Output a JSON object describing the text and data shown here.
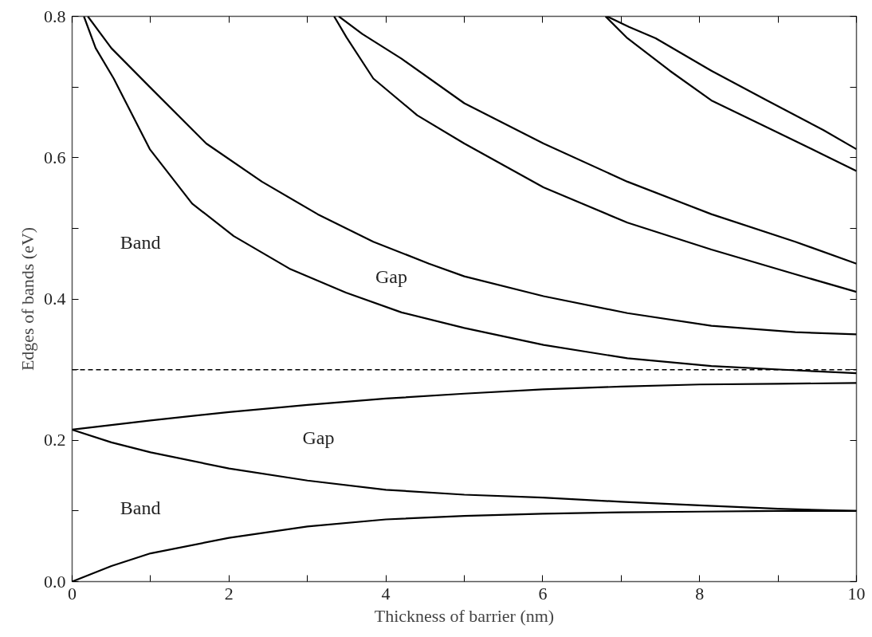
{
  "chart_data": {
    "type": "line",
    "xlabel": "Thickness of barrier (nm)",
    "ylabel": "Edges of bands (eV)",
    "xlim": [
      0,
      10
    ],
    "ylim": [
      0,
      0.8
    ],
    "xticks": [
      0,
      {
        "value": 1,
        "label": null
      },
      2,
      {
        "value": 3,
        "label": null
      },
      4,
      {
        "value": 5,
        "label": null
      },
      6,
      {
        "value": 7,
        "label": null
      },
      8,
      {
        "value": 9,
        "label": null
      },
      10
    ],
    "yticks": [
      {
        "value": 0,
        "label": "0.0"
      },
      {
        "value": 0.1,
        "label": null
      },
      0.2,
      {
        "value": 0.3,
        "label": null
      },
      0.4,
      {
        "value": 0.5,
        "label": null
      },
      0.6,
      {
        "value": 0.7,
        "label": null
      },
      0.8
    ],
    "marker": "none",
    "line_style": "solid",
    "series": [
      {
        "color": "#000000",
        "x": [
          0,
          0.5,
          1,
          2,
          3,
          4,
          5,
          6,
          7,
          8,
          9,
          10
        ],
        "values": [
          0,
          0.022,
          0.04,
          0.062,
          0.078,
          0.088,
          0.093,
          0.096,
          0.098,
          0.099,
          0.1,
          0.1
        ]
      },
      {
        "color": "#000000",
        "x": [
          0,
          0.5,
          1,
          2,
          3,
          4,
          5,
          6,
          7,
          8,
          9,
          10
        ],
        "values": [
          0.215,
          0.197,
          0.183,
          0.16,
          0.143,
          0.13,
          0.123,
          0.119,
          0.113,
          0.108,
          0.103,
          0.1
        ]
      },
      {
        "color": "#000000",
        "x": [
          0,
          1,
          2,
          3,
          4,
          5,
          6,
          7,
          8,
          9,
          10
        ],
        "values": [
          0.215,
          0.228,
          0.24,
          0.25,
          0.259,
          0.266,
          0.272,
          0.276,
          0.279,
          0.28,
          0.281
        ]
      },
      {
        "color": "#000000",
        "x": [
          0.15,
          0.3,
          0.53,
          0.99,
          1.53,
          2.06,
          2.77,
          3.49,
          4.2,
          5.0,
          6.01,
          7.08,
          8.15,
          9.22,
          10
        ],
        "values": [
          0.8,
          0.755,
          0.712,
          0.612,
          0.535,
          0.489,
          0.443,
          0.409,
          0.381,
          0.359,
          0.335,
          0.316,
          0.305,
          0.299,
          0.295
        ]
      },
      {
        "color": "#000000",
        "x": [
          0.2,
          0.5,
          0.99,
          1.71,
          2.42,
          3.13,
          3.84,
          4.55,
          5.0,
          6.01,
          7.08,
          8.15,
          9.22,
          10
        ],
        "values": [
          0.8,
          0.755,
          0.7,
          0.62,
          0.566,
          0.52,
          0.481,
          0.45,
          0.432,
          0.404,
          0.38,
          0.362,
          0.353,
          0.35
        ]
      },
      {
        "color": "#000000",
        "x": [
          3.34,
          3.5,
          3.84,
          4.4,
          5.0,
          6.01,
          7.08,
          8.15,
          9.22,
          10
        ],
        "values": [
          0.8,
          0.77,
          0.712,
          0.66,
          0.62,
          0.558,
          0.508,
          0.47,
          0.435,
          0.41
        ]
      },
      {
        "color": "#000000",
        "x": [
          3.4,
          3.7,
          4.2,
          5.0,
          6.01,
          7.08,
          8.15,
          9.22,
          10
        ],
        "values": [
          0.8,
          0.775,
          0.74,
          0.677,
          0.62,
          0.566,
          0.52,
          0.481,
          0.45
        ]
      },
      {
        "color": "#000000",
        "x": [
          6.8,
          7.08,
          7.62,
          8.15,
          8.86,
          9.58,
          10
        ],
        "values": [
          0.8,
          0.769,
          0.723,
          0.681,
          0.643,
          0.604,
          0.581
        ]
      },
      {
        "color": "#000000",
        "x": [
          6.82,
          7.1,
          7.44,
          8.15,
          8.86,
          9.58,
          10
        ],
        "values": [
          0.8,
          0.785,
          0.769,
          0.723,
          0.681,
          0.639,
          0.612
        ]
      }
    ],
    "ref_lines": [
      {
        "axis": "y",
        "value": 0.3,
        "color": "#000000",
        "line_style": "dashed"
      }
    ],
    "annotations": [
      "Band",
      "Gap",
      "Gap",
      "Band"
    ]
  }
}
